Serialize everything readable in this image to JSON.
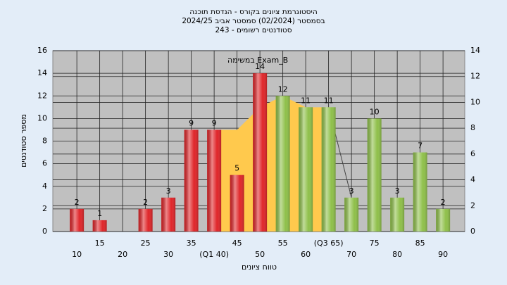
{
  "chart_data": {
    "type": "bar",
    "title": "היסטוגרמת ציונים בקורס - הנדסת תוכנה",
    "subtitle": "בסמסטר  (02/2024)  סמסטר אביב 2024/25",
    "subtitle2": "סטודנטים רשומים - 243",
    "annotation": "במשימה Exam_B",
    "y_label": "מספר סטודנטים",
    "x_label": "טווח ציונים",
    "categories": [
      "10",
      "15",
      "20",
      "25",
      "30",
      "35",
      "(Q1 40)",
      "45",
      "50",
      "55",
      "60",
      "(Q3 65)",
      "70",
      "75",
      "80",
      "85",
      "90"
    ],
    "values": [
      2,
      1,
      null,
      2,
      3,
      9,
      9,
      5,
      14,
      12,
      11,
      11,
      3,
      10,
      3,
      7,
      2
    ],
    "colors": [
      "#e0262a",
      "#e0262a",
      "#e0262a",
      "#e0262a",
      "#e0262a",
      "#e0262a",
      "#e0262a",
      "#e0262a",
      "#e0262a",
      "#8fc04a",
      "#8fc04a",
      "#8fc04a",
      "#8fc04a",
      "#8fc04a",
      "#8fc04a",
      "#8fc04a",
      "#8fc04a"
    ],
    "area": {
      "color": "#ffc94d",
      "x": [
        6,
        7,
        8,
        9,
        10,
        11
      ],
      "values": [
        9,
        9,
        11,
        12,
        11,
        11
      ]
    },
    "line": {
      "color": "#444444",
      "x": [
        11,
        12
      ],
      "values": [
        11,
        3
      ]
    },
    "ylim": [
      0,
      16
    ],
    "yticks": [
      0,
      2,
      4,
      6,
      8,
      10,
      12,
      14,
      16
    ],
    "y2lim": [
      0,
      14
    ],
    "y2ticks": [
      0,
      2,
      4,
      6,
      8,
      10,
      12,
      14
    ],
    "grid": true
  }
}
